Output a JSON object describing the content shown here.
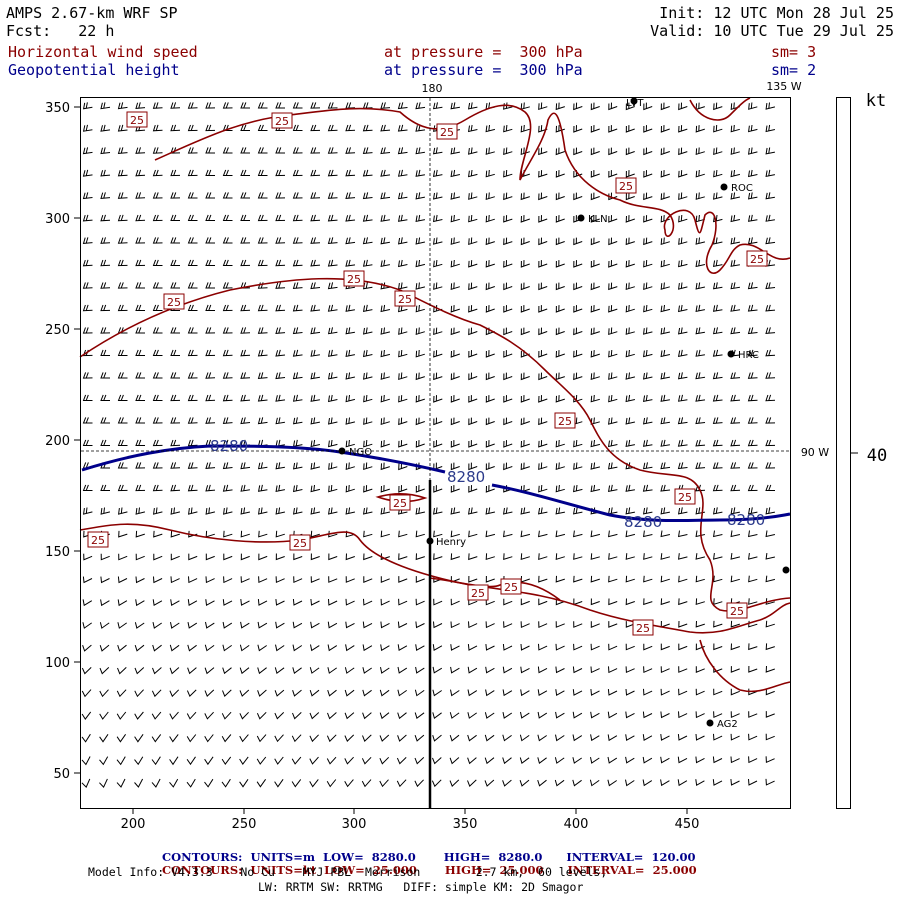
{
  "header": {
    "model": "AMPS 2.67-km WRF SP",
    "init": "Init: 12 UTC Mon 28 Jul 25",
    "fcst": "Fcst:   22 h",
    "valid": "Valid: 10 UTC Tue 29 Jul 25",
    "field1_name": "Horizontal wind speed",
    "field1_level": "at pressure =  300 hPa",
    "field1_sm": "sm= 3",
    "field2_name": "Geopotential height",
    "field2_level": "at pressure =  300 hPa",
    "field2_sm": "sm= 2"
  },
  "axes": {
    "x_ticks": [
      "200",
      "250",
      "300",
      "350",
      "400",
      "450"
    ],
    "y_ticks": [
      "350",
      "300",
      "250",
      "200",
      "150",
      "100",
      "50"
    ],
    "lon_top_180": "180",
    "lon_top_135w": "135 W",
    "lat_right_90w": "90 W"
  },
  "colorbar": {
    "unit": "kt",
    "value": "40"
  },
  "stations": [
    "LVT",
    "ROC",
    "KLN",
    "HRC",
    "NGO",
    "Henry",
    "AG2"
  ],
  "contour_labels": {
    "height": "8280",
    "wind": "25"
  },
  "footer": {
    "c1_label": "CONTOURS:",
    "c1_units": "UNITS=m",
    "c1_low_label": "LOW=",
    "c1_low": "8280.0",
    "c1_high_label": "HIGH=",
    "c1_high": "8280.0",
    "c1_int_label": "INTERVAL=",
    "c1_int": "120.00",
    "c2_label": "CONTOURS:",
    "c2_units": "UNITS=kt",
    "c2_low_label": "LOW=",
    "c2_low": "25.000",
    "c2_high_label": "HIGH=",
    "c2_high": "25.000",
    "c2_int_label": "INTERVAL=",
    "c2_int": "25.000",
    "model_info": "Model Info: V4.3.3    No Cu    MYJ PBL  Morrison        2.7 km,  60 levels,",
    "model_info2": "LW: RRTM SW: RRTMG   DIFF: simple KM: 2D Smagor"
  },
  "colors": {
    "height_contour": "#00008b",
    "wind_contour": "#8b0000",
    "text": "#000000"
  }
}
